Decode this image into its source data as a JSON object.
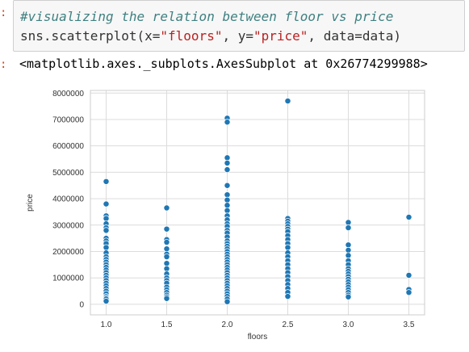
{
  "cell": {
    "in_prompt": ":",
    "out_prompt": ":",
    "code_comment": "#visualizing the relation between floor vs price",
    "code_call": {
      "pre": "sns.scatterplot(x=",
      "x_arg": "\"floors\"",
      "mid": ", y=",
      "y_arg": "\"price\"",
      "post": ", data=data)"
    },
    "output_text": "<matplotlib.axes._subplots.AxesSubplot at 0x26774299988>"
  },
  "colors": {
    "point": "#1f77b4",
    "grid": "#dcdcdc",
    "axes_edge": "#cccccc"
  },
  "chart_data": {
    "type": "scatter",
    "xlabel": "floors",
    "ylabel": "price",
    "xlim": [
      0.87,
      3.63
    ],
    "ylim": [
      -400000,
      8100000
    ],
    "xticks": [
      "1.0",
      "1.5",
      "2.0",
      "2.5",
      "3.0",
      "3.5"
    ],
    "yticks": [
      "0",
      "1000000",
      "2000000",
      "3000000",
      "4000000",
      "5000000",
      "6000000",
      "7000000",
      "8000000"
    ],
    "grid": true,
    "points": [
      {
        "x": 1.0,
        "y": 4650000
      },
      {
        "x": 1.0,
        "y": 3800000
      },
      {
        "x": 1.0,
        "y": 3350000
      },
      {
        "x": 1.0,
        "y": 3250000
      },
      {
        "x": 1.0,
        "y": 3050000
      },
      {
        "x": 1.0,
        "y": 2900000
      },
      {
        "x": 1.0,
        "y": 2800000
      },
      {
        "x": 1.0,
        "y": 2500000
      },
      {
        "x": 1.0,
        "y": 2400000
      },
      {
        "x": 1.0,
        "y": 2300000
      },
      {
        "x": 1.0,
        "y": 2150000
      },
      {
        "x": 1.0,
        "y": 1950000
      },
      {
        "x": 1.0,
        "y": 1800000
      },
      {
        "x": 1.0,
        "y": 1700000
      },
      {
        "x": 1.0,
        "y": 1600000
      },
      {
        "x": 1.0,
        "y": 1500000
      },
      {
        "x": 1.0,
        "y": 1400000
      },
      {
        "x": 1.0,
        "y": 1300000
      },
      {
        "x": 1.0,
        "y": 1200000
      },
      {
        "x": 1.0,
        "y": 1100000
      },
      {
        "x": 1.0,
        "y": 1000000
      },
      {
        "x": 1.0,
        "y": 900000
      },
      {
        "x": 1.0,
        "y": 800000
      },
      {
        "x": 1.0,
        "y": 700000
      },
      {
        "x": 1.0,
        "y": 600000
      },
      {
        "x": 1.0,
        "y": 500000
      },
      {
        "x": 1.0,
        "y": 400000
      },
      {
        "x": 1.0,
        "y": 300000
      },
      {
        "x": 1.0,
        "y": 250000
      },
      {
        "x": 1.0,
        "y": 200000
      },
      {
        "x": 1.0,
        "y": 120000
      },
      {
        "x": 1.5,
        "y": 3650000
      },
      {
        "x": 1.5,
        "y": 2850000
      },
      {
        "x": 1.5,
        "y": 2450000
      },
      {
        "x": 1.5,
        "y": 2350000
      },
      {
        "x": 1.5,
        "y": 2100000
      },
      {
        "x": 1.5,
        "y": 1900000
      },
      {
        "x": 1.5,
        "y": 1800000
      },
      {
        "x": 1.5,
        "y": 1550000
      },
      {
        "x": 1.5,
        "y": 1350000
      },
      {
        "x": 1.5,
        "y": 1150000
      },
      {
        "x": 1.5,
        "y": 1000000
      },
      {
        "x": 1.5,
        "y": 900000
      },
      {
        "x": 1.5,
        "y": 800000
      },
      {
        "x": 1.5,
        "y": 650000
      },
      {
        "x": 1.5,
        "y": 550000
      },
      {
        "x": 1.5,
        "y": 450000
      },
      {
        "x": 1.5,
        "y": 350000
      },
      {
        "x": 1.5,
        "y": 280000
      },
      {
        "x": 1.5,
        "y": 220000
      },
      {
        "x": 2.0,
        "y": 7050000
      },
      {
        "x": 2.0,
        "y": 6900000
      },
      {
        "x": 2.0,
        "y": 5550000
      },
      {
        "x": 2.0,
        "y": 5350000
      },
      {
        "x": 2.0,
        "y": 5100000
      },
      {
        "x": 2.0,
        "y": 4500000
      },
      {
        "x": 2.0,
        "y": 4150000
      },
      {
        "x": 2.0,
        "y": 3950000
      },
      {
        "x": 2.0,
        "y": 3750000
      },
      {
        "x": 2.0,
        "y": 3550000
      },
      {
        "x": 2.0,
        "y": 3350000
      },
      {
        "x": 2.0,
        "y": 3200000
      },
      {
        "x": 2.0,
        "y": 3050000
      },
      {
        "x": 2.0,
        "y": 2950000
      },
      {
        "x": 2.0,
        "y": 2800000
      },
      {
        "x": 2.0,
        "y": 2700000
      },
      {
        "x": 2.0,
        "y": 2550000
      },
      {
        "x": 2.0,
        "y": 2400000
      },
      {
        "x": 2.0,
        "y": 2300000
      },
      {
        "x": 2.0,
        "y": 2200000
      },
      {
        "x": 2.0,
        "y": 2100000
      },
      {
        "x": 2.0,
        "y": 2000000
      },
      {
        "x": 2.0,
        "y": 1900000
      },
      {
        "x": 2.0,
        "y": 1800000
      },
      {
        "x": 2.0,
        "y": 1700000
      },
      {
        "x": 2.0,
        "y": 1600000
      },
      {
        "x": 2.0,
        "y": 1500000
      },
      {
        "x": 2.0,
        "y": 1400000
      },
      {
        "x": 2.0,
        "y": 1300000
      },
      {
        "x": 2.0,
        "y": 1200000
      },
      {
        "x": 2.0,
        "y": 1100000
      },
      {
        "x": 2.0,
        "y": 1000000
      },
      {
        "x": 2.0,
        "y": 900000
      },
      {
        "x": 2.0,
        "y": 800000
      },
      {
        "x": 2.0,
        "y": 700000
      },
      {
        "x": 2.0,
        "y": 600000
      },
      {
        "x": 2.0,
        "y": 500000
      },
      {
        "x": 2.0,
        "y": 400000
      },
      {
        "x": 2.0,
        "y": 300000
      },
      {
        "x": 2.0,
        "y": 200000
      },
      {
        "x": 2.0,
        "y": 100000
      },
      {
        "x": 2.5,
        "y": 7700000
      },
      {
        "x": 2.5,
        "y": 3250000
      },
      {
        "x": 2.5,
        "y": 3150000
      },
      {
        "x": 2.5,
        "y": 3050000
      },
      {
        "x": 2.5,
        "y": 2950000
      },
      {
        "x": 2.5,
        "y": 2850000
      },
      {
        "x": 2.5,
        "y": 2750000
      },
      {
        "x": 2.5,
        "y": 2600000
      },
      {
        "x": 2.5,
        "y": 2450000
      },
      {
        "x": 2.5,
        "y": 2300000
      },
      {
        "x": 2.5,
        "y": 2150000
      },
      {
        "x": 2.5,
        "y": 1950000
      },
      {
        "x": 2.5,
        "y": 1800000
      },
      {
        "x": 2.5,
        "y": 1650000
      },
      {
        "x": 2.5,
        "y": 1500000
      },
      {
        "x": 2.5,
        "y": 1350000
      },
      {
        "x": 2.5,
        "y": 1200000
      },
      {
        "x": 2.5,
        "y": 1050000
      },
      {
        "x": 2.5,
        "y": 900000
      },
      {
        "x": 2.5,
        "y": 750000
      },
      {
        "x": 2.5,
        "y": 600000
      },
      {
        "x": 2.5,
        "y": 450000
      },
      {
        "x": 2.5,
        "y": 300000
      },
      {
        "x": 3.0,
        "y": 3100000
      },
      {
        "x": 3.0,
        "y": 2900000
      },
      {
        "x": 3.0,
        "y": 2250000
      },
      {
        "x": 3.0,
        "y": 2050000
      },
      {
        "x": 3.0,
        "y": 1850000
      },
      {
        "x": 3.0,
        "y": 1650000
      },
      {
        "x": 3.0,
        "y": 1500000
      },
      {
        "x": 3.0,
        "y": 1350000
      },
      {
        "x": 3.0,
        "y": 1250000
      },
      {
        "x": 3.0,
        "y": 1150000
      },
      {
        "x": 3.0,
        "y": 1050000
      },
      {
        "x": 3.0,
        "y": 950000
      },
      {
        "x": 3.0,
        "y": 850000
      },
      {
        "x": 3.0,
        "y": 750000
      },
      {
        "x": 3.0,
        "y": 650000
      },
      {
        "x": 3.0,
        "y": 550000
      },
      {
        "x": 3.0,
        "y": 450000
      },
      {
        "x": 3.0,
        "y": 350000
      },
      {
        "x": 3.0,
        "y": 280000
      },
      {
        "x": 3.5,
        "y": 3300000
      },
      {
        "x": 3.5,
        "y": 1100000
      },
      {
        "x": 3.5,
        "y": 560000
      },
      {
        "x": 3.5,
        "y": 450000
      }
    ]
  }
}
